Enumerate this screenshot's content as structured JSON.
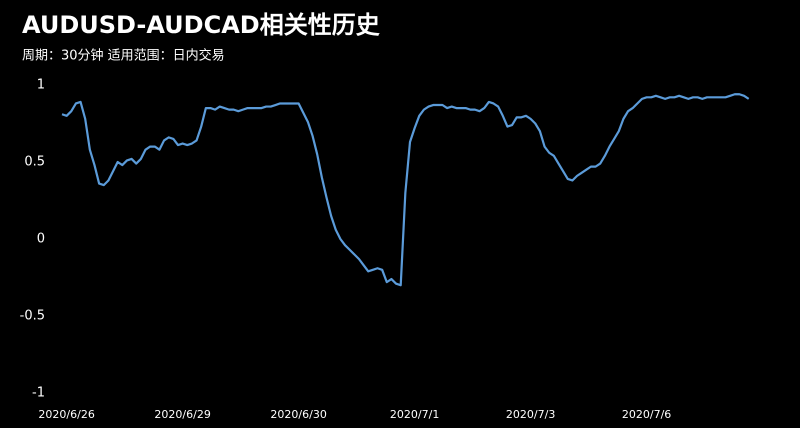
{
  "chart_data": {
    "type": "line",
    "title": "AUDUSD-AUDCAD相关性历史",
    "subtitle": "周期：30分钟 适用范围：日内交易",
    "color": "#5b9bd9",
    "ylim": [
      -1,
      1
    ],
    "yticks": [
      -1,
      -0.5,
      0,
      0.5,
      1
    ],
    "grid": false,
    "categories": [
      null,
      "2020/6/26",
      null,
      null,
      null,
      null,
      null,
      null,
      null,
      null,
      null,
      null,
      null,
      null,
      null,
      null,
      null,
      null,
      null,
      null,
      null,
      null,
      null,
      null,
      null,
      null,
      "2020/6/29",
      null,
      null,
      null,
      null,
      null,
      null,
      null,
      null,
      null,
      null,
      null,
      null,
      null,
      null,
      null,
      null,
      null,
      null,
      null,
      null,
      null,
      null,
      null,
      null,
      "2020/6/30",
      null,
      null,
      null,
      null,
      null,
      null,
      null,
      null,
      null,
      null,
      null,
      null,
      null,
      null,
      null,
      null,
      null,
      null,
      null,
      null,
      null,
      null,
      null,
      null,
      "2020/7/1",
      null,
      null,
      null,
      null,
      null,
      null,
      null,
      null,
      null,
      null,
      null,
      null,
      null,
      null,
      null,
      null,
      null,
      null,
      null,
      null,
      null,
      null,
      null,
      null,
      "2020/7/3",
      null,
      null,
      null,
      null,
      null,
      null,
      null,
      null,
      null,
      null,
      null,
      null,
      null,
      null,
      null,
      null,
      null,
      null,
      null,
      null,
      null,
      null,
      null,
      null,
      "2020/7/6",
      null,
      null,
      null,
      null,
      null,
      null,
      null,
      null,
      null,
      null,
      null,
      null,
      null,
      null,
      null,
      null,
      null,
      null,
      null,
      null,
      null,
      null
    ],
    "values": [
      0.81,
      0.8,
      0.83,
      0.88,
      0.89,
      0.78,
      0.58,
      0.48,
      0.36,
      0.35,
      0.38,
      0.44,
      0.5,
      0.48,
      0.51,
      0.52,
      0.49,
      0.52,
      0.58,
      0.6,
      0.6,
      0.58,
      0.64,
      0.66,
      0.65,
      0.61,
      0.62,
      0.61,
      0.62,
      0.64,
      0.73,
      0.85,
      0.85,
      0.84,
      0.86,
      0.85,
      0.84,
      0.84,
      0.83,
      0.84,
      0.85,
      0.85,
      0.85,
      0.85,
      0.86,
      0.86,
      0.87,
      0.88,
      0.88,
      0.88,
      0.88,
      0.88,
      0.82,
      0.76,
      0.67,
      0.55,
      0.4,
      0.27,
      0.15,
      0.06,
      0.0,
      -0.04,
      -0.07,
      -0.1,
      -0.13,
      -0.17,
      -0.21,
      -0.2,
      -0.19,
      -0.2,
      -0.28,
      -0.26,
      -0.29,
      -0.3,
      0.3,
      0.63,
      0.72,
      0.8,
      0.84,
      0.86,
      0.87,
      0.87,
      0.87,
      0.85,
      0.86,
      0.85,
      0.85,
      0.85,
      0.84,
      0.84,
      0.83,
      0.85,
      0.89,
      0.88,
      0.86,
      0.8,
      0.73,
      0.74,
      0.79,
      0.79,
      0.8,
      0.78,
      0.75,
      0.7,
      0.6,
      0.56,
      0.54,
      0.49,
      0.44,
      0.39,
      0.38,
      0.41,
      0.43,
      0.45,
      0.47,
      0.47,
      0.49,
      0.54,
      0.6,
      0.65,
      0.7,
      0.78,
      0.83,
      0.85,
      0.88,
      0.91,
      0.92,
      0.92,
      0.93,
      0.92,
      0.91,
      0.92,
      0.92,
      0.93,
      0.92,
      0.91,
      0.92,
      0.92,
      0.91,
      0.92,
      0.92,
      0.92,
      0.92,
      0.92,
      0.93,
      0.94,
      0.94,
      0.93,
      0.91
    ]
  }
}
